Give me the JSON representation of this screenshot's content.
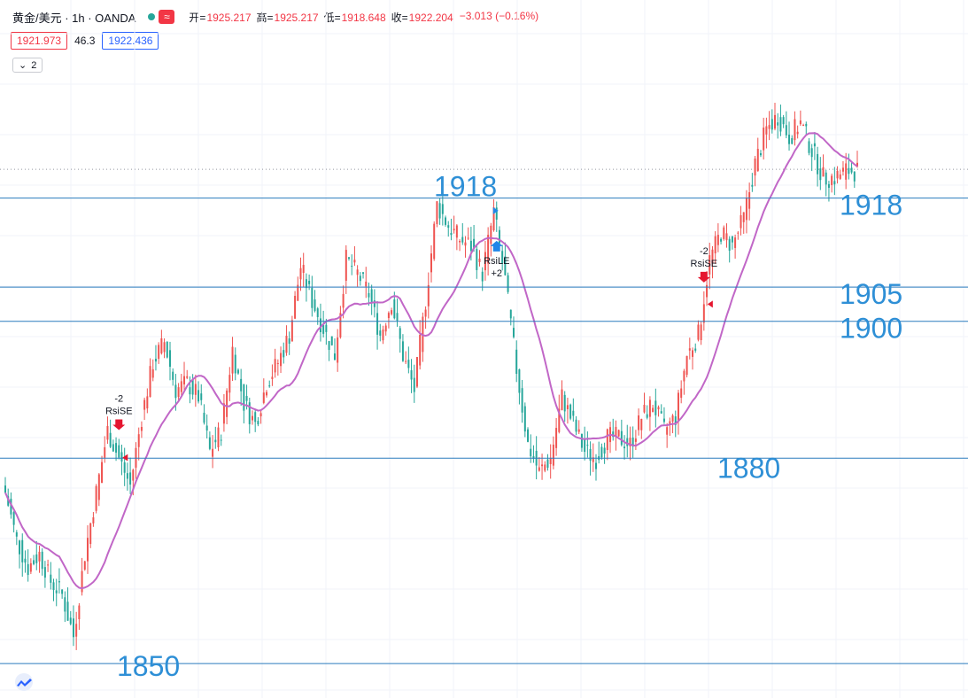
{
  "header": {
    "symbol": "黄金/美元 · 1h · OANDA",
    "open_label": "开=",
    "open": "1925.217",
    "high_label": "高=",
    "high": "1925.217",
    "low_label": "低=",
    "low": "1918.648",
    "close_label": "收=",
    "close": "1922.204",
    "change": "−3.013 (−0.16%)"
  },
  "indicator_row": {
    "bid": "1921.973",
    "rsi": "46.3",
    "ask": "1922.436"
  },
  "collapse_count": "2",
  "colors": {
    "up": "#ef5350",
    "down": "#26a69a",
    "ma": "#c167c7",
    "level_line": "#2a7bbd",
    "level_text": "#2e8fd6",
    "sell_arrow": "#e5162f",
    "buy_arrow": "#2186e8"
  },
  "chart_data": {
    "type": "line",
    "description_series": "Gold/USD hourly candlesticks with a moving average",
    "ylim": [
      1846,
      1934
    ],
    "levels": [
      {
        "value": 1918,
        "label": "1918",
        "label_pos": "top"
      },
      {
        "value": 1918,
        "label": "1918",
        "label_pos": "right"
      },
      {
        "value": 1905,
        "label": "1905",
        "label_pos": "right"
      },
      {
        "value": 1900,
        "label": "1900",
        "label_pos": "right"
      },
      {
        "value": 1880,
        "label": "1880",
        "label_pos": "right"
      },
      {
        "value": 1850,
        "label": "1850",
        "label_pos": "left"
      }
    ],
    "close_path": [
      [
        0,
        1875
      ],
      [
        4,
        1868
      ],
      [
        8,
        1864
      ],
      [
        12,
        1866
      ],
      [
        16,
        1862
      ],
      [
        20,
        1860
      ],
      [
        24,
        1854
      ],
      [
        28,
        1866
      ],
      [
        32,
        1875
      ],
      [
        36,
        1884
      ],
      [
        40,
        1880
      ],
      [
        44,
        1876
      ],
      [
        48,
        1886
      ],
      [
        52,
        1894
      ],
      [
        56,
        1897
      ],
      [
        60,
        1890
      ],
      [
        64,
        1891
      ],
      [
        68,
        1889
      ],
      [
        72,
        1881
      ],
      [
        76,
        1884
      ],
      [
        80,
        1896
      ],
      [
        84,
        1888
      ],
      [
        88,
        1885
      ],
      [
        92,
        1891
      ],
      [
        96,
        1894
      ],
      [
        100,
        1898
      ],
      [
        104,
        1908
      ],
      [
        108,
        1903
      ],
      [
        112,
        1899
      ],
      [
        116,
        1895
      ],
      [
        120,
        1909
      ],
      [
        124,
        1907
      ],
      [
        128,
        1904
      ],
      [
        132,
        1898
      ],
      [
        136,
        1903
      ],
      [
        140,
        1895
      ],
      [
        144,
        1890
      ],
      [
        148,
        1903
      ],
      [
        152,
        1917
      ],
      [
        156,
        1914
      ],
      [
        160,
        1912
      ],
      [
        164,
        1911
      ],
      [
        168,
        1907
      ],
      [
        172,
        1916
      ],
      [
        176,
        1906
      ],
      [
        180,
        1893
      ],
      [
        184,
        1882
      ],
      [
        188,
        1878
      ],
      [
        192,
        1880
      ],
      [
        196,
        1889
      ],
      [
        200,
        1885
      ],
      [
        204,
        1881
      ],
      [
        208,
        1880
      ],
      [
        212,
        1883
      ],
      [
        216,
        1883
      ],
      [
        220,
        1882
      ],
      [
        224,
        1886
      ],
      [
        228,
        1888
      ],
      [
        232,
        1884
      ],
      [
        236,
        1886
      ],
      [
        240,
        1895
      ],
      [
        244,
        1898
      ],
      [
        248,
        1909
      ],
      [
        252,
        1913
      ],
      [
        256,
        1911
      ],
      [
        260,
        1915
      ],
      [
        264,
        1923
      ],
      [
        268,
        1928
      ],
      [
        272,
        1930
      ],
      [
        276,
        1927
      ],
      [
        280,
        1929
      ],
      [
        284,
        1925
      ],
      [
        288,
        1921
      ],
      [
        292,
        1921
      ],
      [
        296,
        1922
      ],
      [
        300,
        1922
      ]
    ],
    "signals": [
      {
        "x": 40,
        "type": "sell",
        "label": "RsiSE",
        "qty": "-2"
      },
      {
        "x": 173,
        "type": "buy",
        "label": "RsiLE",
        "qty": "+2"
      },
      {
        "x": 246,
        "type": "sell",
        "label": "RsiSE",
        "qty": "-2"
      }
    ],
    "current_price": 1922.204
  }
}
